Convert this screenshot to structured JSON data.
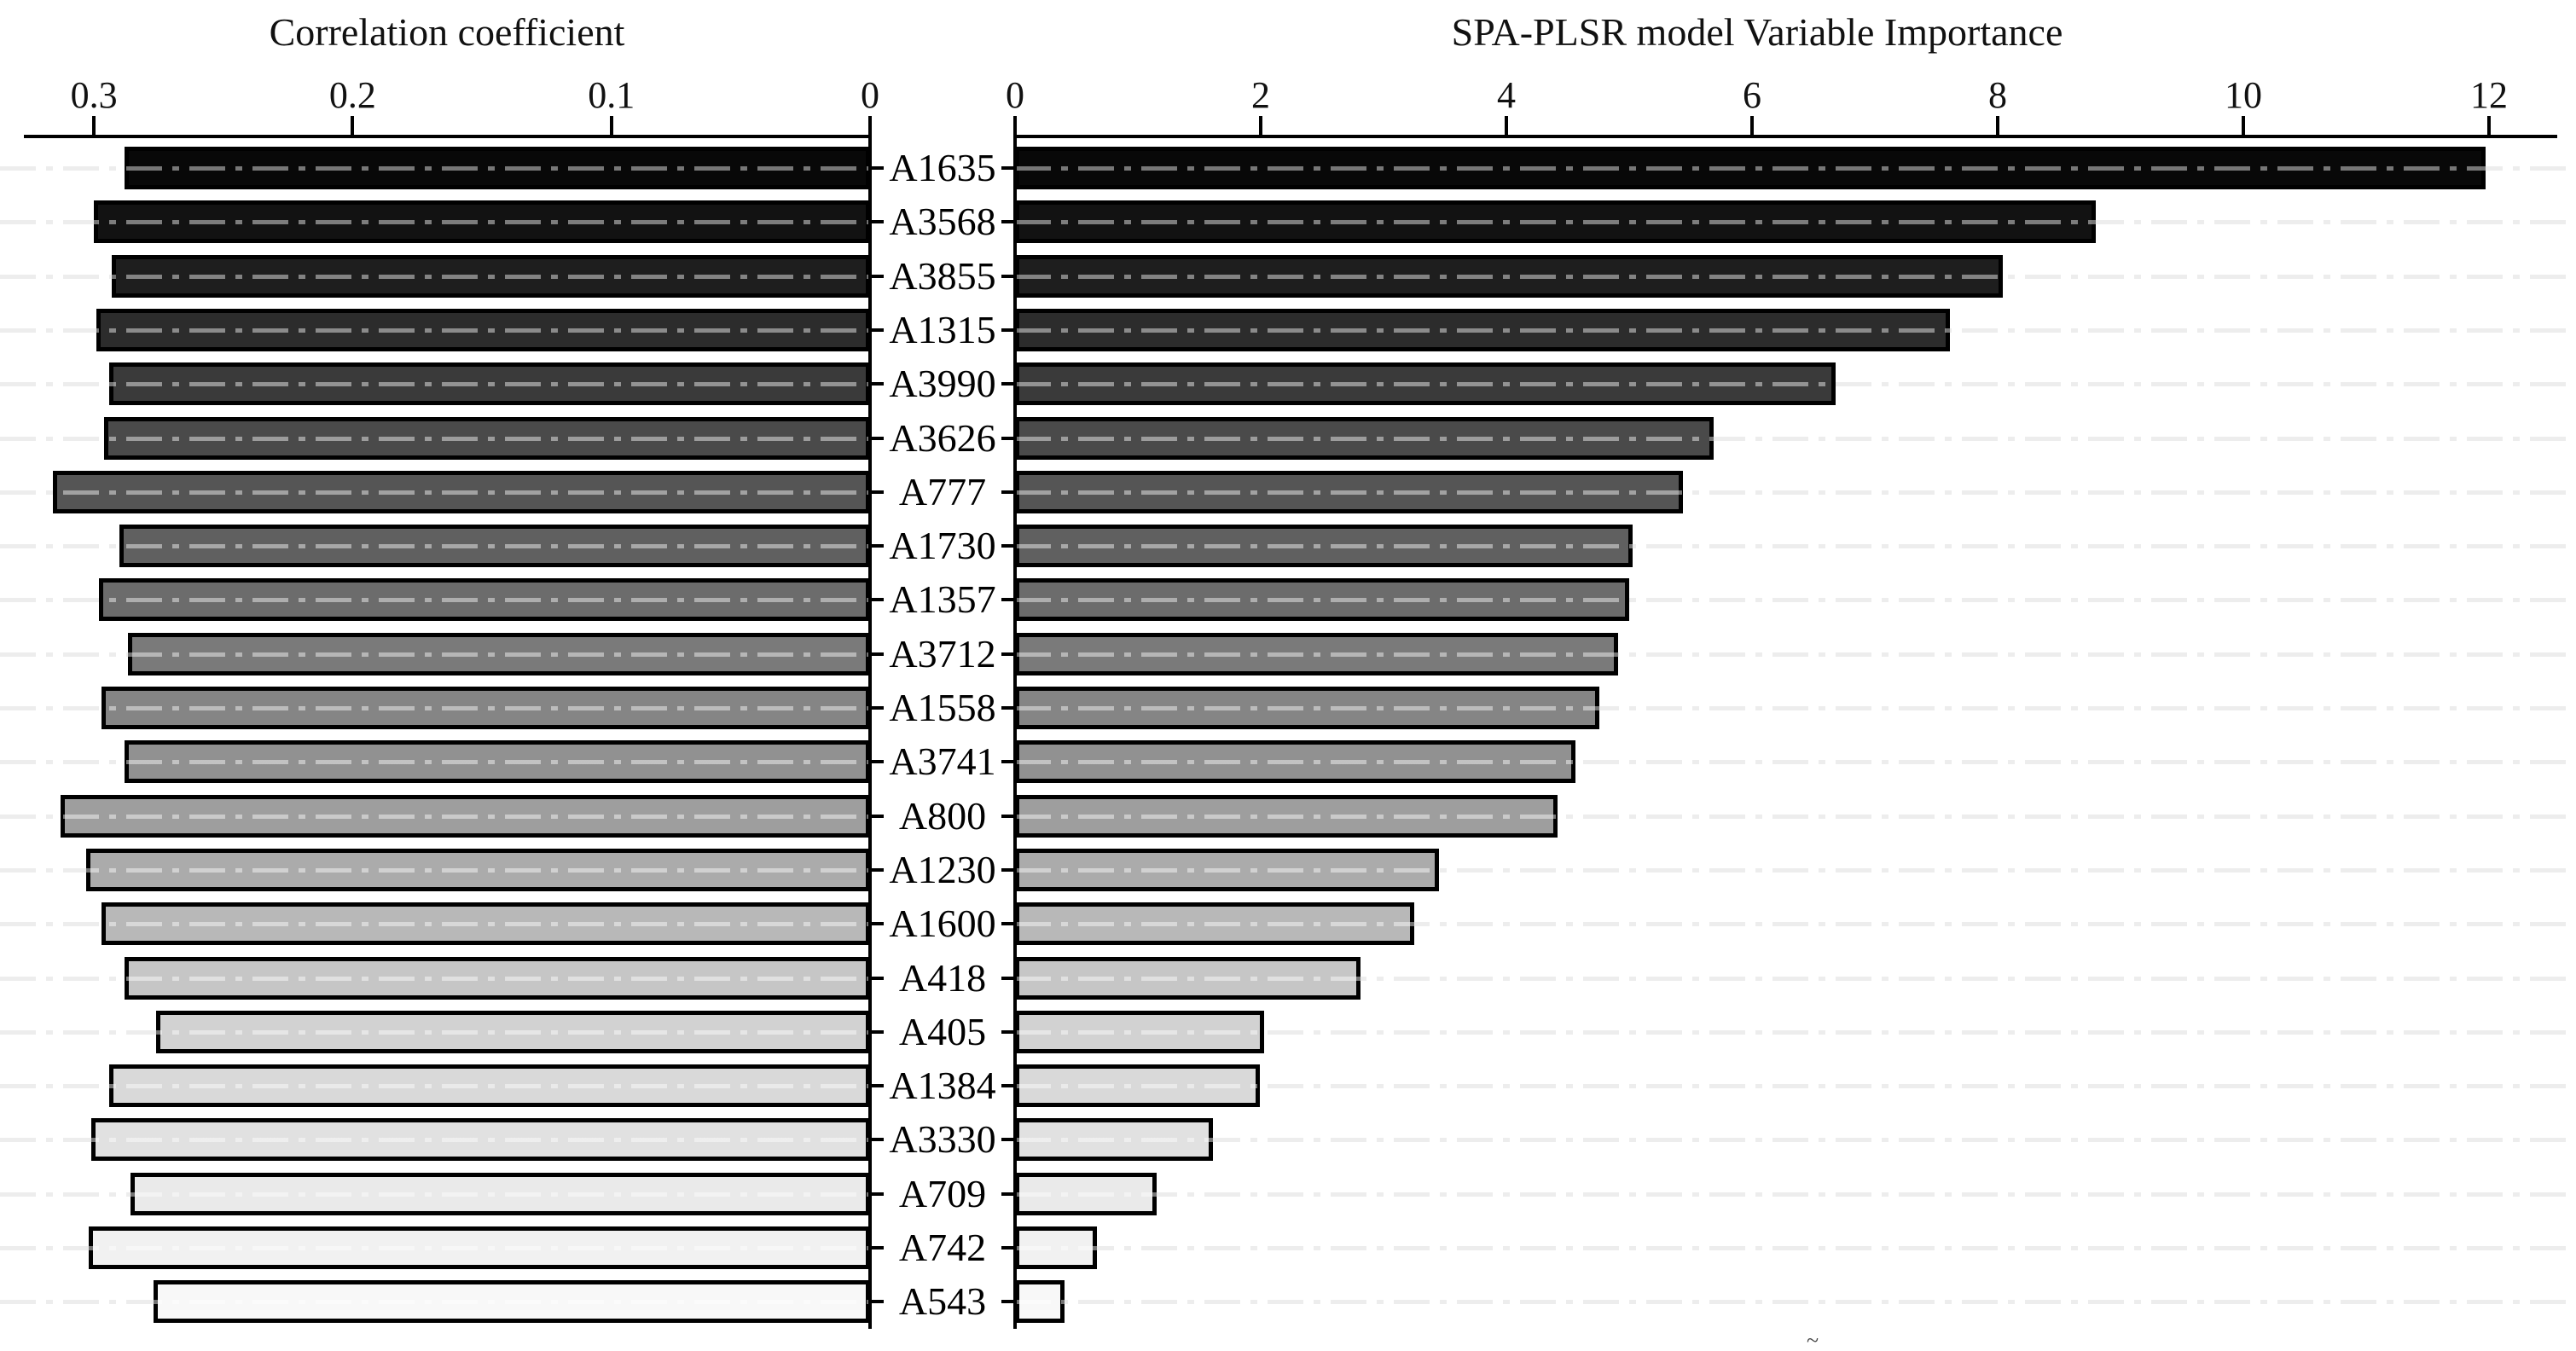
{
  "titles": {
    "left": "Correlation coefficient",
    "right": "SPA-PLSR model Variable Importance"
  },
  "left_axis": {
    "tick_labels": [
      "0.3",
      "0.2",
      "0.1",
      "0"
    ],
    "tick_values": [
      0.3,
      0.2,
      0.1,
      0
    ]
  },
  "right_axis": {
    "tick_labels": [
      "0",
      "2",
      "4",
      "6",
      "8",
      "10",
      "12"
    ],
    "tick_values": [
      0,
      2,
      4,
      6,
      8,
      10,
      12
    ]
  },
  "chart_data": {
    "type": "bar",
    "layout": "dual-horizontal-diverging",
    "title_left": "Correlation coefficient",
    "title_right": "SPA-PLSR model Variable Importance",
    "categories": [
      "A1635",
      "A3568",
      "A3855",
      "A1315",
      "A3990",
      "A3626",
      "A777",
      "A1730",
      "A1357",
      "A3712",
      "A1558",
      "A3741",
      "A800",
      "A1230",
      "A1600",
      "A418",
      "A405",
      "A1384",
      "A3330",
      "A709",
      "A742",
      "A543"
    ],
    "series": [
      {
        "name": "Correlation coefficient",
        "side": "left",
        "axis_range": [
          0.33,
          0
        ],
        "values": [
          0.288,
          0.3,
          0.293,
          0.299,
          0.294,
          0.296,
          0.316,
          0.29,
          0.298,
          0.287,
          0.297,
          0.288,
          0.313,
          0.303,
          0.297,
          0.288,
          0.276,
          0.294,
          0.301,
          0.286,
          0.302,
          0.277
        ]
      },
      {
        "name": "SPA-PLSR model Variable Importance",
        "side": "right",
        "axis_range": [
          0,
          12.56
        ],
        "values": [
          11.97,
          8.8,
          8.04,
          7.61,
          6.68,
          5.69,
          5.44,
          5.03,
          5.0,
          4.91,
          4.76,
          4.56,
          4.42,
          3.45,
          3.25,
          2.81,
          2.03,
          1.99,
          1.61,
          1.15,
          0.67,
          0.4
        ]
      }
    ],
    "bar_colors": [
      "#080808",
      "#121212",
      "#1e1e1e",
      "#2c2c2c",
      "#3a3a3a",
      "#4a4a4a",
      "#555555",
      "#606060",
      "#6c6c6c",
      "#7a7a7a",
      "#858585",
      "#919191",
      "#9e9e9e",
      "#ababab",
      "#b8b8b8",
      "#c6c6c6",
      "#d2d2d2",
      "#d9d9d9",
      "#e1e1e1",
      "#eaeaea",
      "#f1f1f1",
      "#f8f8f8"
    ],
    "bar_border_color": "#000000",
    "grid": "horizontal dash-dot line per category row",
    "grid_color": "#dedede",
    "legend": "none",
    "stray_mark": "~"
  }
}
